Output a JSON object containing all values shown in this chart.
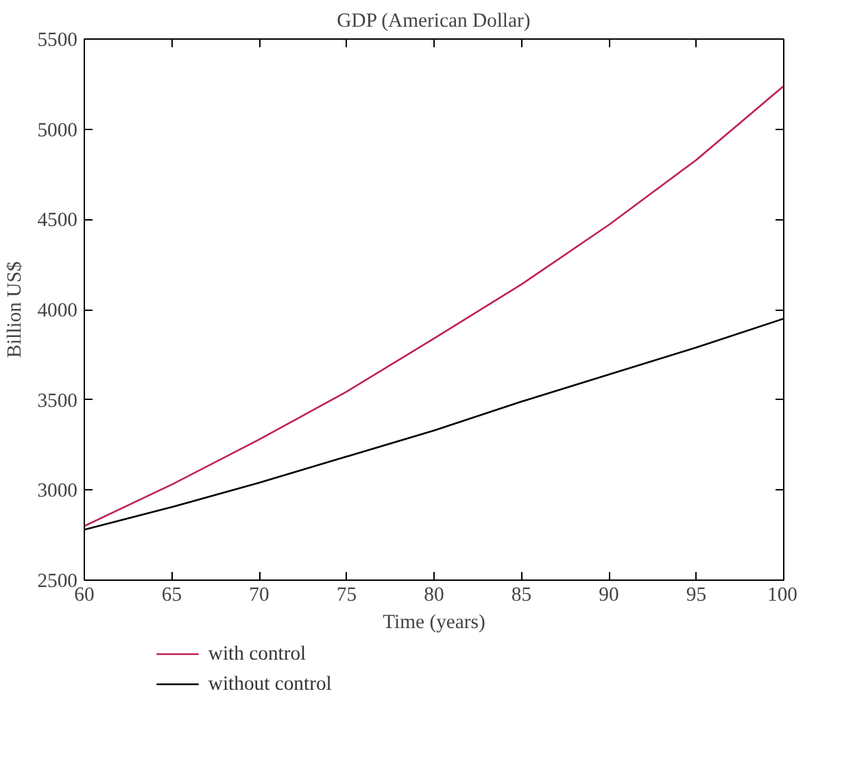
{
  "chart_data": {
    "type": "line",
    "title": "GDP (American Dollar)",
    "xlabel": "Time (years)",
    "ylabel": "Billion US$",
    "x": [
      60,
      65,
      70,
      75,
      80,
      85,
      90,
      95,
      100
    ],
    "series": [
      {
        "name": "with control",
        "color": "#c0224f",
        "values": [
          2800,
          3030,
          3280,
          3545,
          3840,
          4140,
          4470,
          4830,
          5240
        ]
      },
      {
        "name": "without control",
        "color": "#000000",
        "values": [
          2780,
          2905,
          3040,
          3185,
          3330,
          3490,
          3640,
          3790,
          3950
        ]
      }
    ],
    "xlim": [
      60,
      100
    ],
    "ylim": [
      2500,
      5500
    ],
    "xticks": [
      60,
      65,
      70,
      75,
      80,
      85,
      90,
      95,
      100
    ],
    "yticks": [
      2500,
      3000,
      3500,
      4000,
      4500,
      5000,
      5500
    ],
    "grid": false,
    "legend": "bottom left",
    "line_style": "solid",
    "marker": "none"
  }
}
